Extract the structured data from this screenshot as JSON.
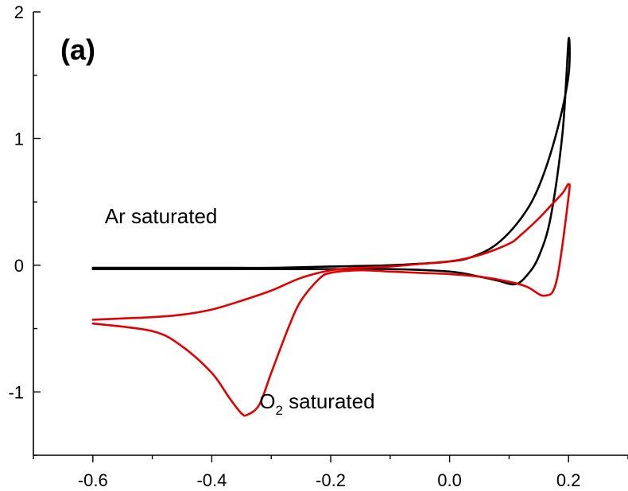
{
  "chart_data": {
    "type": "line",
    "panel_label": "(a)",
    "title": "",
    "xlabel": "",
    "ylabel": "",
    "xlim": [
      -0.7,
      0.3
    ],
    "ylim": [
      -1.5,
      2.0
    ],
    "x_ticks": [
      -0.6,
      -0.4,
      -0.2,
      0.0,
      0.2
    ],
    "x_tick_labels": [
      "-0.6",
      "-0.4",
      "-0.2",
      "0.0",
      "0.2"
    ],
    "y_ticks": [
      -1,
      0,
      1,
      2
    ],
    "y_tick_labels": [
      "-1",
      "0",
      "1",
      "2"
    ],
    "grid": false,
    "legend": "none",
    "annotations": [
      {
        "text": "Ar saturated",
        "x": -0.58,
        "y": 0.33
      },
      {
        "text_main": "O",
        "text_sub": "2",
        "text_rest": " saturated",
        "x": -0.32,
        "y": -1.13
      }
    ],
    "series": [
      {
        "color": "#000000",
        "x": [
          -0.6,
          -0.5,
          -0.4,
          -0.3,
          -0.2,
          -0.1,
          0.0,
          0.04,
          0.08,
          0.12,
          0.15,
          0.18,
          0.2,
          0.2,
          0.19,
          0.17,
          0.15,
          0.13,
          0.11,
          0.08,
          0.05,
          0.0,
          -0.1,
          -0.2,
          -0.3,
          -0.4,
          -0.5,
          -0.6
        ],
        "y": [
          -0.02,
          -0.02,
          -0.02,
          -0.02,
          -0.01,
          0.0,
          0.03,
          0.07,
          0.17,
          0.37,
          0.62,
          1.05,
          1.5,
          1.78,
          1.05,
          0.38,
          0.07,
          -0.08,
          -0.15,
          -0.12,
          -0.09,
          -0.05,
          -0.03,
          -0.03,
          -0.03,
          -0.03,
          -0.03,
          -0.03
        ]
      },
      {
        "color": "#e30000",
        "x": [
          -0.6,
          -0.5,
          -0.45,
          -0.4,
          -0.37,
          -0.35,
          -0.34,
          -0.32,
          -0.3,
          -0.27,
          -0.25,
          -0.22,
          -0.2,
          -0.15,
          -0.1,
          -0.05,
          0.0,
          0.05,
          0.1,
          0.13,
          0.16,
          0.18,
          0.2,
          0.2,
          0.19,
          0.17,
          0.15,
          0.12,
          0.1,
          0.05,
          0.0,
          -0.05,
          -0.1,
          -0.15,
          -0.2,
          -0.25,
          -0.3,
          -0.35,
          -0.4,
          -0.45,
          -0.5,
          -0.55,
          -0.6
        ],
        "y": [
          -0.46,
          -0.52,
          -0.64,
          -0.85,
          -1.05,
          -1.17,
          -1.18,
          -1.1,
          -0.85,
          -0.48,
          -0.28,
          -0.11,
          -0.06,
          -0.04,
          -0.05,
          -0.06,
          -0.07,
          -0.09,
          -0.13,
          -0.17,
          -0.24,
          -0.12,
          0.54,
          0.64,
          0.57,
          0.47,
          0.37,
          0.24,
          0.17,
          0.08,
          0.03,
          0.01,
          -0.01,
          -0.02,
          -0.04,
          -0.1,
          -0.2,
          -0.28,
          -0.35,
          -0.39,
          -0.41,
          -0.42,
          -0.43
        ]
      }
    ]
  }
}
